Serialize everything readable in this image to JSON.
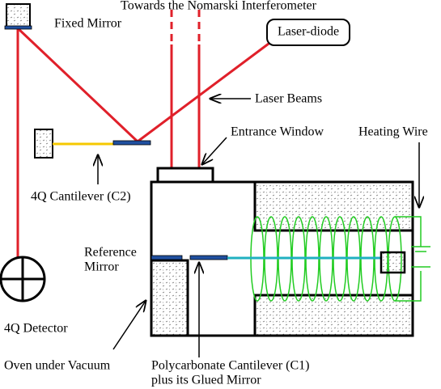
{
  "labels": {
    "top": "Towards the Nomarski Interferometer",
    "fixed_mirror": "Fixed Mirror",
    "laser_diode": "Laser-diode",
    "laser_beams": "Laser Beams",
    "entrance_window": "Entrance Window",
    "heating_wire": "Heating Wire",
    "cantilever_c2": "4Q Cantilever (C2)",
    "reference_mirror": [
      "Reference",
      "Mirror"
    ],
    "detector": "4Q Detector",
    "oven": "Oven under Vacuum",
    "cantilever_c1": [
      "Polycarbonate Cantilever (C1)",
      "plus its Glued Mirror"
    ]
  }
}
